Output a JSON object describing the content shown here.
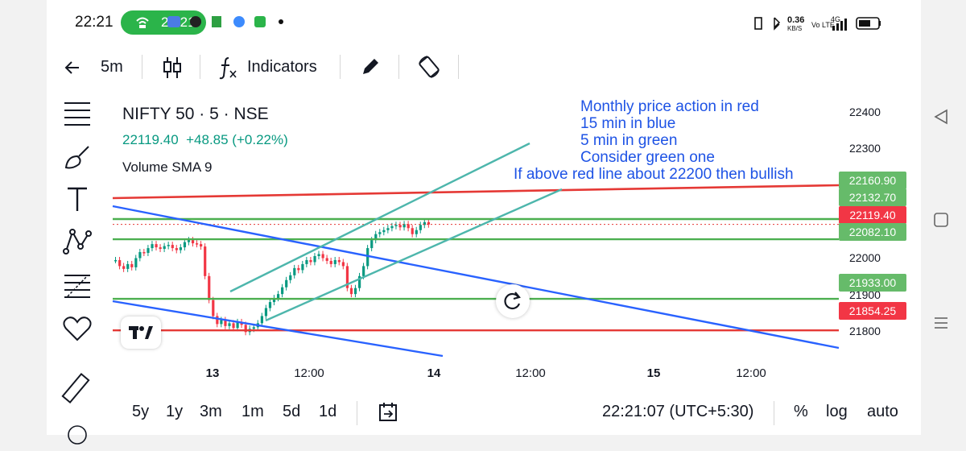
{
  "status_bar": {
    "time": "22:21",
    "pill_time": "22:21",
    "net_speed": "0.36",
    "net_unit": "KB/S",
    "network": "4G",
    "volte": "Vo LTE",
    "battery_color": "#111111"
  },
  "toolbar": {
    "interval": "5m",
    "indicators_label": "Indicators"
  },
  "chart_header": {
    "symbol": "NIFTY 50 · 5 · NSE",
    "price": "22119.40",
    "change": "+48.85 (+0.22%)",
    "indicator": "Volume SMA 9"
  },
  "annotation_lines": [
    "Monthly price action in red",
    "15 min in blue",
    "5 min in green",
    "Consider green one",
    "If above red line about 22200 then bullish"
  ],
  "chart_data": {
    "type": "candlestick",
    "title": "NIFTY 50 · 5 · NSE",
    "x_ticks": [
      "13",
      "12:00",
      "14",
      "12:00",
      "15",
      "12:00"
    ],
    "y_ticks": [
      22400,
      22300,
      22000,
      21900,
      21800
    ],
    "ylim": [
      21770,
      22445
    ],
    "grid": false,
    "price_tags": [
      {
        "value": "22160.90",
        "kind": "green"
      },
      {
        "value": "22132.70",
        "kind": "green"
      },
      {
        "value": "22119.40",
        "kind": "red"
      },
      {
        "value": "22082.10",
        "kind": "green"
      },
      {
        "value": "21933.00",
        "kind": "green"
      },
      {
        "value": "21854.25",
        "kind": "red"
      }
    ],
    "horizontal_levels": [
      {
        "value": 22132.7,
        "color": "#4caf50"
      },
      {
        "value": 22119.4,
        "color": "#e53935"
      },
      {
        "value": 22082.1,
        "color": "#4caf50"
      },
      {
        "value": 21933.0,
        "color": "#4caf50"
      },
      {
        "value": 21854.25,
        "color": "#e53935"
      }
    ],
    "colors": {
      "up": "#089981",
      "down": "#f23645",
      "red_line": "#e53935",
      "blue_line": "#2962ff",
      "green_line": "#4db6ac",
      "level_green": "#66bb6a",
      "level_red": "#e53935"
    }
  },
  "bottom_bar": {
    "ranges": [
      "5y",
      "1y",
      "3m",
      "1m",
      "5d",
      "1d"
    ],
    "clock": "22:21:07 (UTC+5:30)",
    "percent": "%",
    "log": "log",
    "auto": "auto"
  }
}
